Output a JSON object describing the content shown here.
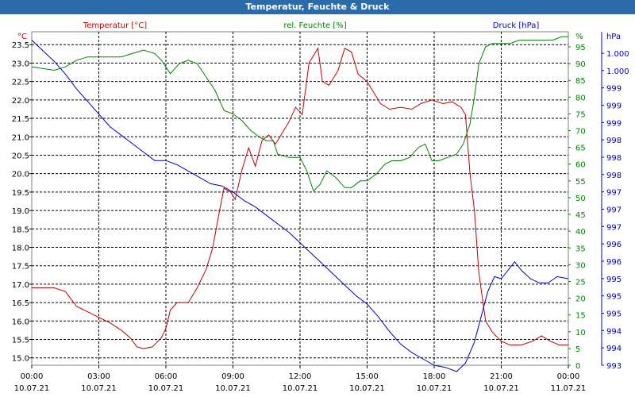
{
  "window": {
    "title": "Temperatur, Feuchte & Druck"
  },
  "colors": {
    "temperature": "#c00000",
    "humidity": "#008000",
    "pressure": "#0000c0",
    "grid": "#000000",
    "titlebar": "#2a6cab"
  },
  "chart_data": {
    "type": "line",
    "title": "Temperatur, Feuchte & Druck",
    "x_range": [
      "10.07.21 00:00",
      "11.07.21 00:00"
    ],
    "x_ticks": [
      {
        "time": "00:00",
        "date": "10.07.21"
      },
      {
        "time": "03:00",
        "date": "10.07.21"
      },
      {
        "time": "06:00",
        "date": "10.07.21"
      },
      {
        "time": "09:00",
        "date": "10.07.21"
      },
      {
        "time": "12:00",
        "date": "10.07.21"
      },
      {
        "time": "15:00",
        "date": "10.07.21"
      },
      {
        "time": "18:00",
        "date": "10.07.21"
      },
      {
        "time": "21:00",
        "date": "10.07.21"
      },
      {
        "time": "00:00",
        "date": "11.07.21"
      }
    ],
    "grid": true,
    "axes": {
      "temperature": {
        "label": "Temperatur [°C]",
        "unit": "°C",
        "side": "left",
        "ylim": [
          14.8,
          23.85
        ],
        "ticks": [
          "15.0",
          "15.5",
          "16.0",
          "16.5",
          "17.0",
          "17.5",
          "18.0",
          "18.5",
          "19.0",
          "19.5",
          "20.0",
          "20.5",
          "21.0",
          "21.5",
          "22.0",
          "22.5",
          "23.0",
          "23.5"
        ]
      },
      "humidity": {
        "label": "rel. Feuchte [%]",
        "unit": "%",
        "side": "right",
        "ylim": [
          0,
          99.5
        ],
        "ticks": [
          "0",
          "5",
          "10",
          "15",
          "20",
          "25",
          "30",
          "35",
          "40",
          "45",
          "50",
          "55",
          "60",
          "65",
          "70",
          "75",
          "80",
          "85",
          "90",
          "95"
        ]
      },
      "pressure": {
        "label": "Druck [hPa]",
        "unit": "hPa",
        "side": "right",
        "ylim": [
          993.0,
          1000.9
        ],
        "ticks": [
          "993",
          "994",
          "994",
          "995",
          "995",
          "995",
          "996",
          "996",
          "997",
          "997",
          "997",
          "998",
          "998",
          "998",
          "999",
          "999",
          "999",
          "1.000",
          "1.000"
        ]
      }
    },
    "series": [
      {
        "name": "Temperatur [°C]",
        "axis": "temperature",
        "points": [
          [
            0.0,
            16.9
          ],
          [
            1.0,
            16.9
          ],
          [
            1.5,
            16.8
          ],
          [
            2.0,
            16.4
          ],
          [
            2.5,
            16.25
          ],
          [
            3.0,
            16.1
          ],
          [
            3.5,
            15.95
          ],
          [
            4.0,
            15.75
          ],
          [
            4.4,
            15.55
          ],
          [
            4.7,
            15.3
          ],
          [
            5.0,
            15.25
          ],
          [
            5.4,
            15.3
          ],
          [
            5.8,
            15.55
          ],
          [
            6.0,
            15.8
          ],
          [
            6.2,
            16.3
          ],
          [
            6.5,
            16.5
          ],
          [
            7.0,
            16.5
          ],
          [
            7.4,
            16.9
          ],
          [
            7.8,
            17.4
          ],
          [
            8.1,
            18.0
          ],
          [
            8.4,
            19.0
          ],
          [
            8.6,
            19.6
          ],
          [
            8.9,
            19.5
          ],
          [
            9.1,
            19.3
          ],
          [
            9.4,
            20.1
          ],
          [
            9.7,
            20.7
          ],
          [
            10.0,
            20.2
          ],
          [
            10.3,
            20.9
          ],
          [
            10.6,
            21.05
          ],
          [
            10.9,
            20.8
          ],
          [
            11.2,
            21.1
          ],
          [
            11.5,
            21.4
          ],
          [
            11.8,
            21.8
          ],
          [
            12.1,
            21.6
          ],
          [
            12.4,
            23.0
          ],
          [
            12.8,
            23.4
          ],
          [
            13.0,
            22.5
          ],
          [
            13.3,
            22.4
          ],
          [
            13.7,
            22.8
          ],
          [
            14.0,
            23.4
          ],
          [
            14.3,
            23.3
          ],
          [
            14.6,
            22.7
          ],
          [
            15.0,
            22.5
          ],
          [
            15.3,
            22.2
          ],
          [
            15.6,
            21.9
          ],
          [
            16.0,
            21.75
          ],
          [
            16.5,
            21.8
          ],
          [
            17.0,
            21.75
          ],
          [
            17.4,
            21.9
          ],
          [
            17.9,
            22.0
          ],
          [
            18.4,
            21.9
          ],
          [
            18.8,
            21.95
          ],
          [
            19.2,
            21.8
          ],
          [
            19.4,
            21.6
          ],
          [
            19.6,
            20.0
          ],
          [
            19.8,
            19.0
          ],
          [
            20.0,
            17.3
          ],
          [
            20.3,
            16.0
          ],
          [
            20.6,
            15.7
          ],
          [
            21.0,
            15.45
          ],
          [
            21.4,
            15.35
          ],
          [
            21.9,
            15.35
          ],
          [
            22.4,
            15.45
          ],
          [
            22.8,
            15.6
          ],
          [
            23.2,
            15.45
          ],
          [
            23.6,
            15.35
          ],
          [
            24.0,
            15.35
          ]
        ]
      },
      {
        "name": "rel. Feuchte [%]",
        "axis": "humidity",
        "points": [
          [
            0.0,
            89
          ],
          [
            1.0,
            88
          ],
          [
            1.5,
            89
          ],
          [
            2.0,
            91
          ],
          [
            2.5,
            92
          ],
          [
            3.0,
            92
          ],
          [
            3.5,
            92
          ],
          [
            4.0,
            92
          ],
          [
            4.5,
            93
          ],
          [
            5.0,
            94
          ],
          [
            5.5,
            93
          ],
          [
            5.8,
            91
          ],
          [
            6.2,
            87
          ],
          [
            6.6,
            90
          ],
          [
            7.0,
            91
          ],
          [
            7.4,
            90
          ],
          [
            7.8,
            86
          ],
          [
            8.2,
            82
          ],
          [
            8.6,
            76
          ],
          [
            9.0,
            75
          ],
          [
            9.4,
            73
          ],
          [
            9.8,
            70
          ],
          [
            10.2,
            68
          ],
          [
            10.5,
            67
          ],
          [
            10.8,
            67
          ],
          [
            11.0,
            63
          ],
          [
            11.5,
            62
          ],
          [
            12.0,
            62
          ],
          [
            12.3,
            58
          ],
          [
            12.6,
            52
          ],
          [
            12.9,
            54
          ],
          [
            13.2,
            58
          ],
          [
            13.6,
            56
          ],
          [
            14.0,
            53
          ],
          [
            14.3,
            53
          ],
          [
            14.7,
            55
          ],
          [
            15.0,
            55
          ],
          [
            15.4,
            57
          ],
          [
            15.8,
            60
          ],
          [
            16.1,
            61
          ],
          [
            16.5,
            61
          ],
          [
            16.9,
            62
          ],
          [
            17.3,
            65
          ],
          [
            17.6,
            66
          ],
          [
            17.9,
            61
          ],
          [
            18.2,
            61
          ],
          [
            18.6,
            62
          ],
          [
            19.0,
            63
          ],
          [
            19.3,
            66
          ],
          [
            19.6,
            72
          ],
          [
            19.8,
            80
          ],
          [
            20.0,
            90
          ],
          [
            20.3,
            95
          ],
          [
            20.6,
            96
          ],
          [
            21.0,
            96
          ],
          [
            21.4,
            96
          ],
          [
            21.8,
            97
          ],
          [
            22.3,
            97
          ],
          [
            22.8,
            97
          ],
          [
            23.3,
            97
          ],
          [
            23.7,
            98
          ],
          [
            24.0,
            98
          ]
        ]
      },
      {
        "name": "Druck [hPa]",
        "axis": "pressure",
        "points": [
          [
            0.0,
            1000.7
          ],
          [
            0.5,
            1000.45
          ],
          [
            1.0,
            1000.2
          ],
          [
            1.5,
            999.9
          ],
          [
            2.0,
            999.55
          ],
          [
            2.5,
            999.25
          ],
          [
            3.0,
            998.95
          ],
          [
            3.5,
            998.65
          ],
          [
            4.0,
            998.45
          ],
          [
            4.5,
            998.25
          ],
          [
            5.0,
            998.05
          ],
          [
            5.5,
            997.85
          ],
          [
            6.0,
            997.85
          ],
          [
            6.5,
            997.75
          ],
          [
            7.0,
            997.6
          ],
          [
            7.5,
            997.45
          ],
          [
            8.0,
            997.3
          ],
          [
            8.5,
            997.25
          ],
          [
            9.0,
            997.1
          ],
          [
            9.5,
            996.9
          ],
          [
            10.0,
            996.75
          ],
          [
            10.5,
            996.55
          ],
          [
            11.0,
            996.35
          ],
          [
            11.5,
            996.15
          ],
          [
            12.0,
            995.9
          ],
          [
            12.5,
            995.65
          ],
          [
            13.0,
            995.4
          ],
          [
            13.5,
            995.15
          ],
          [
            14.0,
            994.9
          ],
          [
            14.5,
            994.65
          ],
          [
            15.0,
            994.45
          ],
          [
            15.5,
            994.15
          ],
          [
            16.0,
            993.8
          ],
          [
            16.5,
            993.5
          ],
          [
            17.0,
            993.3
          ],
          [
            17.5,
            993.15
          ],
          [
            18.0,
            993.0
          ],
          [
            18.5,
            992.95
          ],
          [
            19.0,
            992.85
          ],
          [
            19.4,
            993.05
          ],
          [
            19.8,
            993.55
          ],
          [
            20.1,
            994.15
          ],
          [
            20.4,
            994.75
          ],
          [
            20.7,
            995.1
          ],
          [
            21.0,
            995.05
          ],
          [
            21.3,
            995.25
          ],
          [
            21.6,
            995.45
          ],
          [
            21.9,
            995.25
          ],
          [
            22.3,
            995.05
          ],
          [
            22.7,
            994.95
          ],
          [
            23.1,
            994.95
          ],
          [
            23.5,
            995.1
          ],
          [
            24.0,
            995.05
          ]
        ]
      }
    ]
  }
}
